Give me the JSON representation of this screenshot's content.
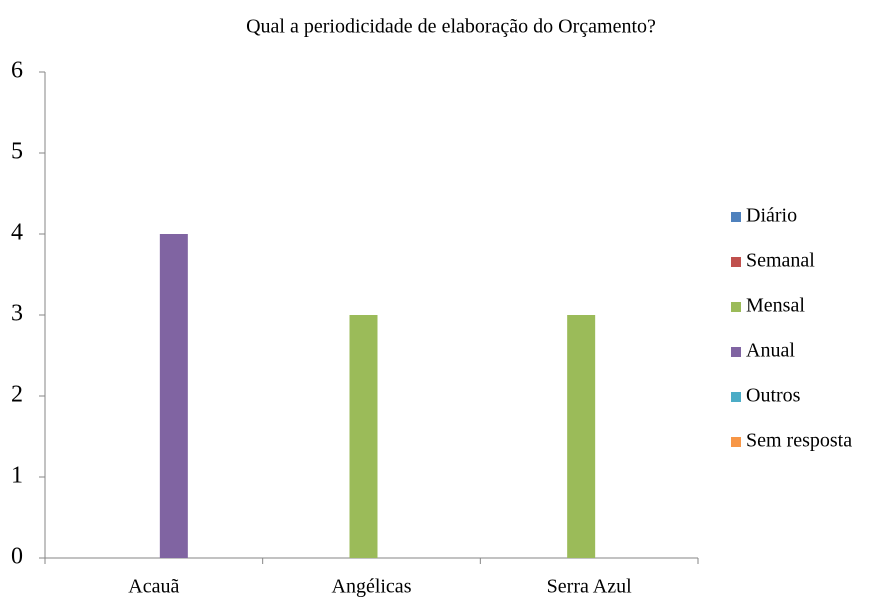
{
  "chart_data": {
    "type": "bar",
    "title": "Qual a periodicidade de elaboração do Orçamento?",
    "categories": [
      "Acauã",
      "Angélicas",
      "Serra Azul"
    ],
    "series": [
      {
        "name": "Diário",
        "color": "#4f81bd",
        "values": [
          0,
          0,
          0
        ]
      },
      {
        "name": "Semanal",
        "color": "#c0504d",
        "values": [
          0,
          0,
          0
        ]
      },
      {
        "name": "Mensal",
        "color": "#9bbb59",
        "values": [
          0,
          3,
          3
        ]
      },
      {
        "name": "Anual",
        "color": "#8064a2",
        "values": [
          4,
          0,
          0
        ]
      },
      {
        "name": "Outros",
        "color": "#4bacc6",
        "values": [
          0,
          0,
          0
        ]
      },
      {
        "name": "Sem resposta",
        "color": "#f79646",
        "values": [
          0,
          0,
          0
        ]
      }
    ],
    "ylim": [
      0,
      6
    ],
    "yticks": [
      0,
      1,
      2,
      3,
      4,
      5,
      6
    ],
    "grid": false,
    "legend": "right"
  }
}
